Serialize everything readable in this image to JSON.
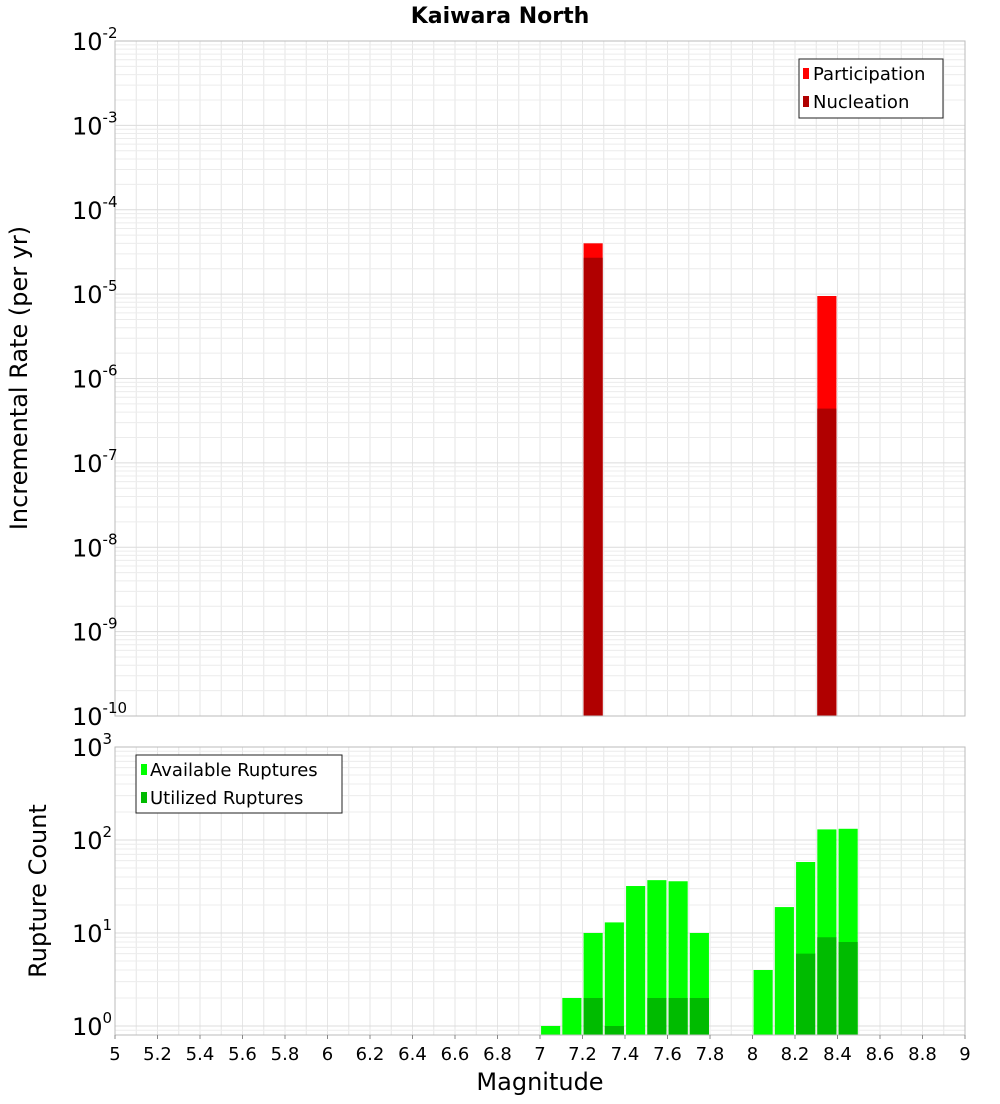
{
  "colors": {
    "participation": "#ff0000",
    "nucleation": "#b00000",
    "available": "#00ff00",
    "utilized": "#00bb00",
    "grid": "#e6e6e6",
    "frame": "#bbbbbb"
  },
  "chart_data": [
    {
      "type": "bar",
      "title": "Kaiwara North",
      "xlabel": "Magnitude",
      "ylabel": "Incremental Rate (per yr)",
      "yscale": "log",
      "xlim": [
        5,
        9
      ],
      "ylim": [
        1e-10,
        0.01
      ],
      "ytick_exponents": [
        -10,
        -9,
        -8,
        -7,
        -6,
        -5,
        -4,
        -3,
        -2
      ],
      "ytick_base": "10",
      "bar_width": 0.09,
      "legend": {
        "position": "top-right",
        "entries": [
          "Participation",
          "Nucleation"
        ]
      },
      "series": [
        {
          "name": "Participation",
          "x": [
            7.25,
            8.35
          ],
          "values": [
            4e-05,
            9.5e-06
          ]
        },
        {
          "name": "Nucleation",
          "x": [
            7.25,
            8.35
          ],
          "values": [
            2.7e-05,
            4.4e-07
          ]
        }
      ]
    },
    {
      "type": "bar",
      "xlabel": "Magnitude",
      "ylabel": "Rupture Count",
      "yscale": "log",
      "xlim": [
        5,
        9
      ],
      "ylim": [
        0.8,
        1000
      ],
      "ytick_exponents": [
        0,
        1,
        2,
        3
      ],
      "ytick_base": "10",
      "xticks": [
        "5",
        "5.2",
        "5.4",
        "5.6",
        "5.8",
        "6",
        "6.2",
        "6.4",
        "6.6",
        "6.8",
        "7",
        "7.2",
        "7.4",
        "7.6",
        "7.8",
        "8",
        "8.2",
        "8.4",
        "8.6",
        "8.8",
        "9"
      ],
      "bar_width": 0.09,
      "legend": {
        "position": "top-left",
        "entries": [
          "Available Ruptures",
          "Utilized Ruptures"
        ]
      },
      "series": [
        {
          "name": "Available Ruptures",
          "x": [
            7.05,
            7.15,
            7.25,
            7.35,
            7.45,
            7.55,
            7.65,
            7.75,
            8.05,
            8.15,
            8.25,
            8.35,
            8.45
          ],
          "values": [
            1,
            2,
            10,
            13,
            32,
            37,
            36,
            10,
            4,
            19,
            58,
            130,
            132
          ]
        },
        {
          "name": "Utilized Ruptures",
          "x": [
            7.25,
            7.35,
            7.55,
            7.65,
            7.75,
            8.25,
            8.35,
            8.45
          ],
          "values": [
            2,
            1,
            2,
            2,
            2,
            6,
            9,
            8
          ]
        }
      ]
    }
  ]
}
